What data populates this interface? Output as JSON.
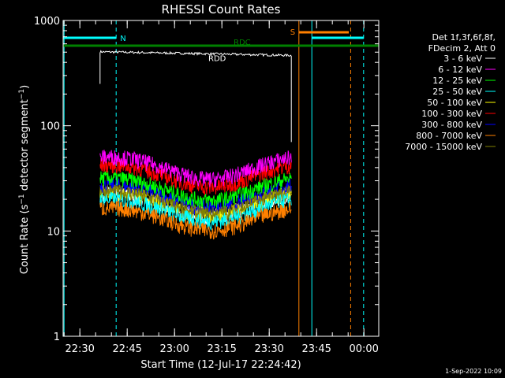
{
  "chart_data": {
    "type": "line",
    "title": "RHESSI Count Rates",
    "xlabel": "Start Time (12-Jul-17 22:24:42)",
    "ylabel_prefix": "Count Rate (s",
    "ylabel_sup1": "−1",
    "ylabel_mid": " detector segment",
    "ylabel_sup2": "−1",
    "ylabel_suffix": ")",
    "x_axis": {
      "start": "22:24:42",
      "range_minutes": [
        0,
        100
      ],
      "ticks": [
        {
          "minute": 5.3,
          "label": "22:30"
        },
        {
          "minute": 20.3,
          "label": "22:45"
        },
        {
          "minute": 35.3,
          "label": "23:00"
        },
        {
          "minute": 50.3,
          "label": "23:15"
        },
        {
          "minute": 65.3,
          "label": "23:30"
        },
        {
          "minute": 80.3,
          "label": "23:45"
        },
        {
          "minute": 95.3,
          "label": "00:00"
        }
      ]
    },
    "y_axis": {
      "scale": "log",
      "range": [
        1,
        1000
      ],
      "ticks": [
        {
          "value": 1,
          "label": "1"
        },
        {
          "value": 10,
          "label": "10"
        },
        {
          "value": 100,
          "label": "100"
        },
        {
          "value": 1000,
          "label": "1000"
        }
      ]
    },
    "legend": {
      "position": "right",
      "header": [
        "Det 1f,3f,6f,8f,",
        "FDecim 2, Att 0"
      ]
    },
    "series": [
      {
        "name": "3 - 6 keV",
        "color": "#ffffff",
        "level": 19
      },
      {
        "name": "6 - 12 keV",
        "color": "#ff00ff",
        "level": 43
      },
      {
        "name": "12 - 25 keV",
        "color": "#00ff00",
        "level": 27
      },
      {
        "name": "25 - 50 keV",
        "color": "#00ffff",
        "level": 17
      },
      {
        "name": "50 - 100 keV",
        "color": "#ffff00",
        "level": 20
      },
      {
        "name": "100 - 300 keV",
        "color": "#ff0000",
        "level": 36
      },
      {
        "name": "300 - 800 keV",
        "color": "#0000ff",
        "level": 23
      },
      {
        "name": "800 - 7000 keV",
        "color": "#ff8000",
        "level": 14
      },
      {
        "name": "7000 - 15000 keV",
        "color": "#808000",
        "level": 20
      }
    ],
    "top_trace": {
      "color": "#ffffff",
      "level": 480,
      "start_minute": 11.7,
      "end_minute": 72.3
    },
    "rdd_label": "RDD",
    "bars": [
      {
        "label": "N",
        "color": "#00ffff",
        "start_minute": 0,
        "end_minute": 16.8
      },
      {
        "label": "RDC",
        "color": "#008000",
        "start_minute": 0,
        "end_minute": 100
      },
      {
        "label": "S",
        "color": "#ff8000",
        "start_minute": 74.7,
        "end_minute": 90.5
      },
      {
        "label": "",
        "color": "#00ffff",
        "start_minute": 78.8,
        "end_minute": 95.2
      }
    ],
    "vlines": [
      {
        "minute": 0.3,
        "color": "#00ffff",
        "style": "solid"
      },
      {
        "minute": 16.8,
        "color": "#00ffff",
        "style": "dashed"
      },
      {
        "minute": 74.7,
        "color": "#ff8000",
        "style": "solid"
      },
      {
        "minute": 78.8,
        "color": "#00ffff",
        "style": "solid"
      },
      {
        "minute": 91.1,
        "color": "#ff8000",
        "style": "dashed"
      },
      {
        "minute": 95.2,
        "color": "#00ffff",
        "style": "dashed"
      }
    ],
    "grid": false
  },
  "footer": {
    "date": "1-Sep-2022 10:09"
  }
}
